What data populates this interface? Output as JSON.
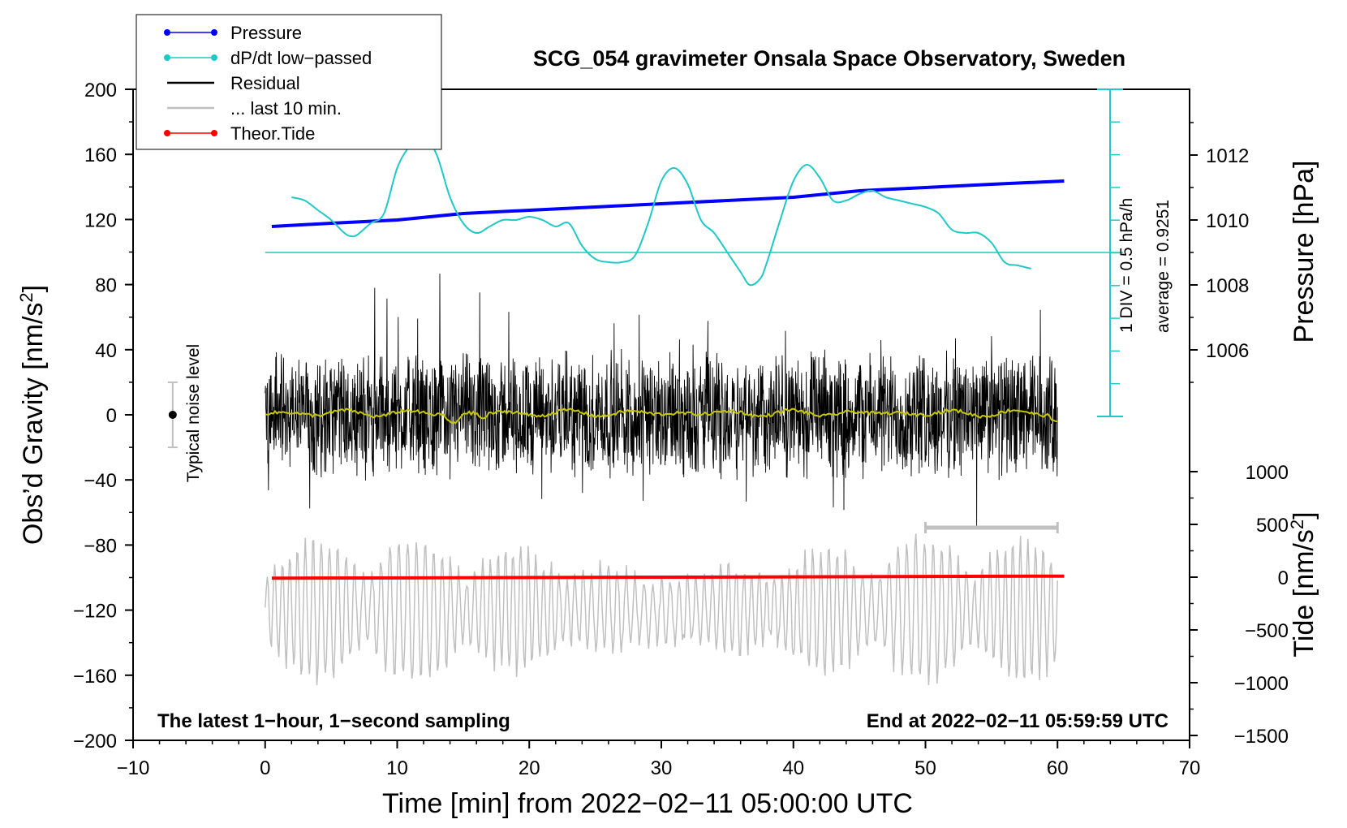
{
  "chart_data": {
    "type": "line",
    "title": "SCG_054 gravimeter Onsala Space Observatory, Sweden",
    "xlabel": "Time [min] from 2022−02−11 05:00:00 UTC",
    "xlim": [
      -10,
      70
    ],
    "xticks": [
      -10,
      0,
      10,
      20,
      30,
      40,
      50,
      60,
      70
    ],
    "left_axis": {
      "label": "Obs’d Gravity [nm/s²]",
      "label_base": "Obs’d Gravity [nm/s",
      "label_sup": "2",
      "label_close": "]",
      "ylim": [
        -200,
        200
      ],
      "ticks": [
        -200,
        -160,
        -120,
        -80,
        -40,
        0,
        40,
        80,
        120,
        160,
        200
      ]
    },
    "right_pressure_axis": {
      "label": "Pressure [hPa]",
      "ticks": [
        1006,
        1008,
        1010,
        1012
      ]
    },
    "right_tide_axis": {
      "label": "Tide [nm/s²]",
      "label_base": "Tide [nm/s",
      "label_sup": "2",
      "label_close": "]",
      "ticks": [
        -1500,
        -1000,
        -500,
        0,
        500,
        1000
      ]
    },
    "legend": {
      "position": "top-left",
      "entries": [
        {
          "name": "Pressure",
          "color": "#0000ff",
          "marker": true
        },
        {
          "name": "dP/dt low−passed",
          "color": "#20c8c8",
          "marker": true
        },
        {
          "name": "Residual",
          "color": "#000000",
          "marker": false
        },
        {
          "name": "... last 10 min.",
          "color": "#c0c0c0",
          "marker": false
        },
        {
          "name": "Theor.Tide",
          "color": "#ff0000",
          "marker": true
        }
      ]
    },
    "series": [
      {
        "name": "Pressure",
        "unit": "hPa",
        "x": [
          0.5,
          5,
          10,
          15,
          20,
          25,
          30,
          35,
          40,
          45,
          50,
          55,
          60.5
        ],
        "values": [
          1009.8,
          1009.9,
          1010.0,
          1010.2,
          1010.3,
          1010.4,
          1010.5,
          1010.6,
          1010.7,
          1010.9,
          1011.0,
          1011.1,
          1011.2
        ]
      },
      {
        "name": "dP/dt low−passed",
        "unit": "hPa/h",
        "x": [
          2,
          3,
          4,
          5,
          6,
          6.5,
          7,
          8,
          9,
          10,
          11,
          12,
          13,
          14,
          15,
          16,
          17,
          18,
          19,
          20,
          21,
          22,
          23,
          24,
          25,
          26,
          27,
          28,
          29,
          30,
          31,
          32,
          33,
          34,
          35,
          36,
          36.7,
          37.5,
          38,
          39,
          40,
          41,
          42,
          43,
          44,
          45,
          46,
          47,
          48,
          49,
          50,
          51,
          52,
          53,
          54,
          55,
          56,
          57,
          58
        ],
        "values": [
          1.7,
          1.6,
          1.3,
          1.0,
          0.6,
          0.5,
          0.55,
          0.9,
          1.2,
          2.6,
          3.3,
          3.6,
          3.0,
          1.7,
          0.9,
          0.6,
          0.8,
          1.0,
          1.0,
          1.1,
          1.0,
          0.8,
          0.9,
          0.2,
          -0.2,
          -0.3,
          -0.3,
          -0.1,
          0.9,
          2.2,
          2.6,
          2.1,
          1.0,
          0.6,
          0.0,
          -0.6,
          -1.0,
          -0.8,
          -0.3,
          1.0,
          2.2,
          2.7,
          2.3,
          1.6,
          1.6,
          1.8,
          1.9,
          1.7,
          1.6,
          1.5,
          1.4,
          1.2,
          0.7,
          0.6,
          0.6,
          0.3,
          -0.3,
          -0.4,
          -0.5
        ]
      },
      {
        "name": "Residual",
        "unit": "nm/s2",
        "x_range": [
          0,
          60
        ],
        "sampling": "1 s",
        "envelope": [
          -75,
          92
        ],
        "typical_amplitude": 25
      },
      {
        "name": "... last 10 min.",
        "unit": "nm/s2",
        "x_range": [
          0,
          60
        ],
        "offset": -120,
        "typical_amplitude": 30
      },
      {
        "name": "Theor.Tide",
        "unit": "nm/s2",
        "x": [
          0.5,
          60.5
        ],
        "values": [
          -10,
          10
        ]
      }
    ],
    "dpdt_scale": {
      "baseline_value": 1009,
      "label_1": "1 DIV = 0.5 hPa/h",
      "label_2": "average = 0.9251",
      "scale_bar_value": 0.5
    },
    "noise_level": {
      "label": "Typical noise level",
      "center": 0,
      "plus_minus": 20,
      "x": -7
    },
    "last10_bar": {
      "x_start": 50,
      "x_end": 60
    },
    "annotations": {
      "bottom_left": "The latest 1−hour, 1−second sampling",
      "bottom_right": "End at 2022−02−11 05:59:59 UTC"
    }
  }
}
